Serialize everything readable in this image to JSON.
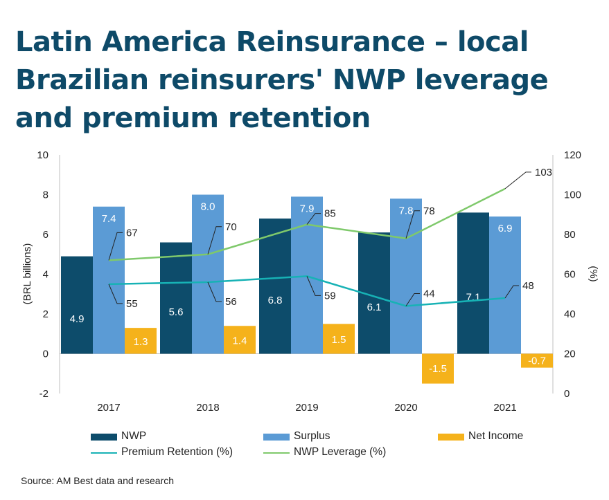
{
  "title_lines": [
    "Latin America Reinsurance – local",
    "Brazilian reinsurers' NWP leverage",
    "and premium retention"
  ],
  "source": "Source: AM Best data and research",
  "colors": {
    "nwp": "#0d4c6b",
    "surplus": "#5b9bd5",
    "net_income": "#f5b21b",
    "premium_retention": "#17b2b5",
    "nwp_leverage": "#7fc96b",
    "title": "#0e4a68"
  },
  "chart_data": {
    "type": "bar",
    "categories": [
      "2017",
      "2018",
      "2019",
      "2020",
      "2021"
    ],
    "series": [
      {
        "name": "NWP",
        "type": "bar",
        "axis": "left",
        "values": [
          4.9,
          5.6,
          6.8,
          6.1,
          7.1
        ]
      },
      {
        "name": "Surplus",
        "type": "bar",
        "axis": "left",
        "values": [
          7.4,
          8.0,
          7.9,
          7.8,
          6.9
        ]
      },
      {
        "name": "Net Income",
        "type": "bar",
        "axis": "left",
        "values": [
          1.3,
          1.4,
          1.5,
          -1.5,
          -0.7
        ]
      },
      {
        "name": "Premium Retention (%)",
        "type": "line",
        "axis": "right",
        "values": [
          55,
          56,
          59,
          44,
          48
        ]
      },
      {
        "name": "NWP Leverage (%)",
        "type": "line",
        "axis": "right",
        "values": [
          67,
          70,
          85,
          78,
          103
        ]
      }
    ],
    "ylabel": "(BRL billions)",
    "ylim": [
      -2,
      10
    ],
    "yticks": [
      "-2",
      "0",
      "2",
      "4",
      "6",
      "8",
      "10"
    ],
    "y2label": "(%)",
    "y2lim": [
      0,
      120
    ],
    "y2ticks": [
      "0",
      "20",
      "40",
      "60",
      "80",
      "100",
      "120"
    ],
    "bar_labels": {
      "NWP": [
        "4.9",
        "5.6",
        "6.8",
        "6.1",
        "7.1"
      ],
      "Surplus": [
        "7.4",
        "8.0",
        "7.9",
        "7.8",
        "6.9"
      ],
      "Net Income": [
        "1.3",
        "1.4",
        "1.5",
        "-1.5",
        "-0.7"
      ]
    },
    "line_labels": {
      "Premium Retention (%)": [
        "55",
        "56",
        "59",
        "44",
        "48"
      ],
      "NWP Leverage (%)": [
        "67",
        "70",
        "85",
        "78",
        "103"
      ]
    },
    "legend_position": "bottom",
    "grid": false
  }
}
